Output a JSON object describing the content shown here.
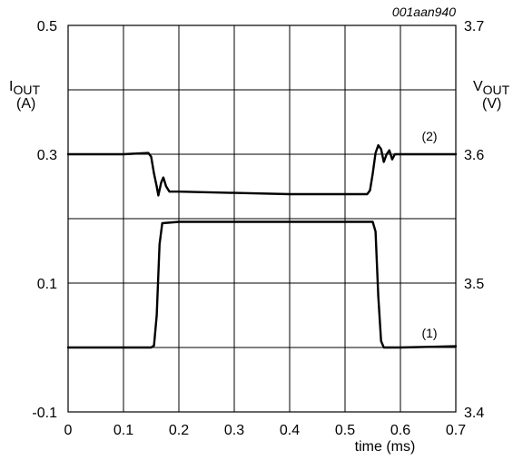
{
  "chart_data": {
    "type": "line",
    "reference": "001aan940",
    "xlabel": "time (ms)",
    "xlim": [
      0,
      0.7
    ],
    "x_ticks": [
      "0",
      "0.1",
      "0.2",
      "0.3",
      "0.4",
      "0.5",
      "0.6",
      "0.7"
    ],
    "left_axis": {
      "label_main": "I",
      "label_sub": "OUT",
      "unit": "(A)",
      "ylim": [
        -0.1,
        0.5
      ],
      "ticks": [
        "0.5",
        "0.3",
        "0.1",
        "-0.1"
      ]
    },
    "right_axis": {
      "label_main": "V",
      "label_sub": "OUT",
      "unit": "(V)",
      "ylim": [
        3.4,
        3.7
      ],
      "ticks": [
        "3.7",
        "3.6",
        "3.5",
        "3.4"
      ]
    },
    "grid": true,
    "series": [
      {
        "name": "(1)",
        "axis": "left",
        "x": [
          0,
          0.15,
          0.155,
          0.16,
          0.165,
          0.17,
          0.2,
          0.3,
          0.4,
          0.5,
          0.55,
          0.555,
          0.56,
          0.565,
          0.57,
          0.6,
          0.65,
          0.7
        ],
        "y": [
          0.0,
          0.0,
          0.003,
          0.05,
          0.16,
          0.193,
          0.195,
          0.195,
          0.195,
          0.195,
          0.195,
          0.18,
          0.08,
          0.01,
          0.0,
          0.0,
          0.001,
          0.002
        ]
      },
      {
        "name": "(2)",
        "axis": "right",
        "x": [
          0,
          0.1,
          0.145,
          0.15,
          0.155,
          0.16,
          0.163,
          0.168,
          0.172,
          0.177,
          0.183,
          0.19,
          0.2,
          0.3,
          0.4,
          0.5,
          0.54,
          0.545,
          0.55,
          0.555,
          0.56,
          0.565,
          0.57,
          0.575,
          0.58,
          0.585,
          0.59,
          0.6,
          0.65,
          0.7
        ],
        "y": [
          3.6,
          3.6,
          3.601,
          3.598,
          3.585,
          3.575,
          3.568,
          3.578,
          3.582,
          3.575,
          3.571,
          3.571,
          3.571,
          3.57,
          3.569,
          3.569,
          3.569,
          3.572,
          3.585,
          3.601,
          3.607,
          3.604,
          3.594,
          3.6,
          3.603,
          3.596,
          3.6,
          3.6,
          3.6,
          3.6
        ]
      }
    ]
  }
}
